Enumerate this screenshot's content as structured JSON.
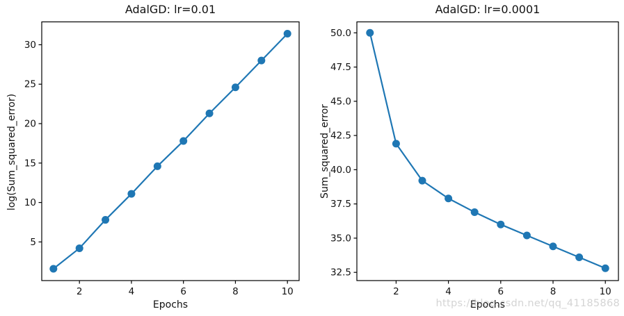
{
  "figure": {
    "watermark": "https://blog.csdn.net/qq_41185868",
    "background": "#ffffff",
    "frame_color": "#000000",
    "accent_color": "#1f77b4"
  },
  "chart_data": [
    {
      "type": "line",
      "title": "AdalGD: lr=0.01",
      "xlabel": "Epochs",
      "ylabel": "log(Sum_squared_error)",
      "x": [
        1,
        2,
        3,
        4,
        5,
        6,
        7,
        8,
        9,
        10
      ],
      "y": [
        1.6,
        4.2,
        7.8,
        11.1,
        14.6,
        17.8,
        21.3,
        24.6,
        28.0,
        31.4
      ],
      "xlim": [
        0.55,
        10.45
      ],
      "ylim": [
        0.1,
        32.9
      ],
      "xticks": [
        2,
        4,
        6,
        8,
        10
      ],
      "yticks": [
        5,
        10,
        15,
        20,
        25,
        30
      ],
      "ytick_decimals": 0,
      "line_color": "#1f77b4",
      "marker": "circle",
      "grid": false,
      "legend": "none"
    },
    {
      "type": "line",
      "title": "AdalGD: lr=0.0001",
      "xlabel": "Epochs",
      "ylabel": "Sum_squared_error",
      "x": [
        1,
        2,
        3,
        4,
        5,
        6,
        7,
        8,
        9,
        10
      ],
      "y": [
        50.0,
        41.9,
        39.2,
        37.9,
        36.9,
        36.0,
        35.2,
        34.4,
        33.6,
        32.8
      ],
      "xlim": [
        0.5,
        10.5
      ],
      "ylim": [
        31.9,
        50.8
      ],
      "xticks": [
        2,
        4,
        6,
        8,
        10
      ],
      "yticks": [
        32.5,
        35.0,
        37.5,
        40.0,
        42.5,
        45.0,
        47.5,
        50.0
      ],
      "ytick_decimals": 1,
      "line_color": "#1f77b4",
      "marker": "circle",
      "grid": false,
      "legend": "none"
    }
  ]
}
